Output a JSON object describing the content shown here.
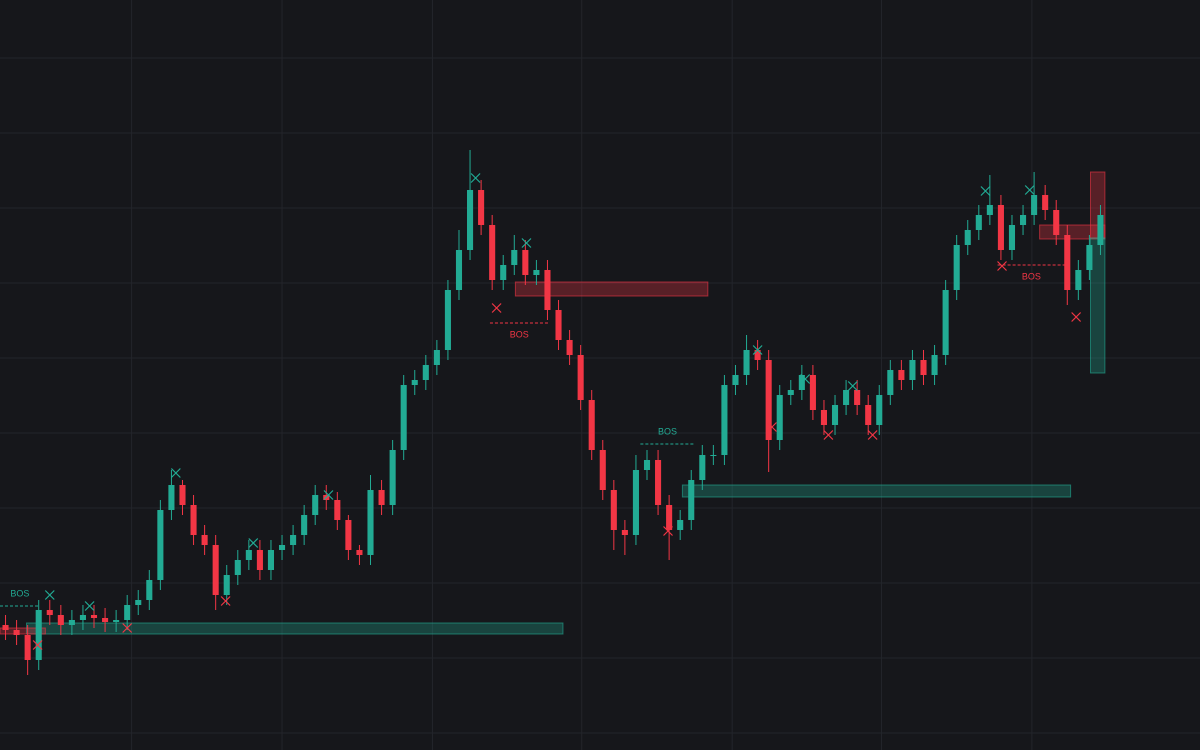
{
  "chart_data": {
    "type": "candlestick",
    "xlim": [
      -0.5,
      108
    ],
    "ylim": [
      0,
      750
    ],
    "xticks": [
      11.4,
      25,
      38.6,
      52.1,
      65.7,
      79.2,
      92.8
    ],
    "yticks": [
      17,
      92,
      167,
      242,
      317,
      392,
      467,
      542,
      617,
      692
    ],
    "grid": true,
    "background": "#16171b",
    "grid_color": "#23252b",
    "up_color": "#22ab94",
    "down_color": "#f23645",
    "open": [
      125,
      120,
      115,
      90,
      140,
      135,
      125,
      130,
      135,
      132,
      128,
      130,
      145,
      150,
      170,
      240,
      265,
      245,
      215,
      205,
      155,
      175,
      190,
      200,
      180,
      200,
      205,
      215,
      235,
      255,
      250,
      230,
      200,
      195,
      260,
      245,
      300,
      365,
      370,
      385,
      400,
      460,
      500,
      560,
      525,
      470,
      485,
      500,
      475,
      480,
      440,
      410,
      395,
      350,
      300,
      260,
      220,
      215,
      280,
      290,
      245,
      220,
      230,
      270,
      295,
      295,
      365,
      375,
      400,
      390,
      310,
      355,
      360,
      375,
      340,
      325,
      345,
      360,
      345,
      325,
      355,
      380,
      370,
      390,
      375,
      395,
      460,
      505,
      520,
      535,
      545,
      500,
      525,
      535,
      555,
      540,
      515,
      460,
      480,
      505
    ],
    "high": [
      135,
      130,
      125,
      150,
      150,
      145,
      140,
      145,
      145,
      142,
      140,
      155,
      160,
      180,
      250,
      280,
      270,
      255,
      225,
      215,
      185,
      200,
      210,
      210,
      210,
      215,
      225,
      245,
      265,
      265,
      258,
      235,
      205,
      275,
      270,
      310,
      375,
      380,
      395,
      410,
      470,
      520,
      600,
      570,
      535,
      495,
      515,
      510,
      490,
      490,
      450,
      420,
      405,
      360,
      310,
      270,
      230,
      295,
      300,
      300,
      255,
      240,
      280,
      305,
      305,
      375,
      385,
      415,
      410,
      400,
      365,
      370,
      385,
      385,
      350,
      355,
      370,
      370,
      355,
      365,
      390,
      390,
      400,
      400,
      405,
      470,
      515,
      530,
      545,
      575,
      555,
      535,
      545,
      578,
      565,
      550,
      525,
      490,
      515,
      545
    ],
    "low": [
      110,
      105,
      75,
      80,
      125,
      115,
      115,
      120,
      122,
      118,
      118,
      120,
      135,
      140,
      160,
      230,
      235,
      205,
      195,
      140,
      145,
      165,
      180,
      170,
      170,
      190,
      195,
      205,
      225,
      240,
      220,
      190,
      185,
      185,
      235,
      235,
      290,
      355,
      360,
      375,
      390,
      450,
      490,
      515,
      460,
      460,
      475,
      465,
      465,
      430,
      400,
      385,
      340,
      290,
      250,
      200,
      195,
      205,
      270,
      235,
      190,
      210,
      220,
      260,
      285,
      285,
      355,
      365,
      380,
      278,
      300,
      345,
      350,
      330,
      315,
      315,
      335,
      335,
      315,
      315,
      345,
      360,
      360,
      365,
      365,
      385,
      450,
      495,
      510,
      525,
      490,
      490,
      515,
      525,
      530,
      505,
      445,
      450,
      470,
      495
    ],
    "close": [
      120,
      115,
      90,
      140,
      135,
      125,
      130,
      135,
      132,
      128,
      130,
      145,
      150,
      170,
      240,
      265,
      245,
      215,
      205,
      155,
      175,
      190,
      200,
      180,
      200,
      205,
      215,
      235,
      255,
      250,
      230,
      200,
      195,
      260,
      245,
      300,
      365,
      370,
      385,
      400,
      460,
      500,
      560,
      525,
      470,
      485,
      500,
      475,
      480,
      440,
      410,
      395,
      350,
      300,
      260,
      220,
      215,
      280,
      290,
      245,
      220,
      230,
      270,
      295,
      295,
      365,
      375,
      400,
      390,
      310,
      355,
      360,
      375,
      340,
      325,
      345,
      360,
      345,
      325,
      355,
      380,
      370,
      390,
      375,
      395,
      460,
      505,
      520,
      535,
      545,
      500,
      525,
      535,
      555,
      540,
      515,
      460,
      480,
      505,
      535
    ],
    "zones": [
      {
        "color": "#22ab94",
        "x": [
          1.9,
          50.4
        ],
        "y": [
          116,
          127
        ]
      },
      {
        "color": "#f23645",
        "x": [
          -0.5,
          3.6
        ],
        "y": [
          116,
          122
        ]
      },
      {
        "color": "#f23645",
        "x": [
          46.1,
          63.5
        ],
        "y": [
          454,
          468
        ]
      },
      {
        "color": "#22ab94",
        "x": [
          61.2,
          96.3
        ],
        "y": [
          253,
          265
        ]
      },
      {
        "color": "#f23645",
        "x": [
          93.5,
          99.4
        ],
        "y": [
          511,
          525
        ]
      },
      {
        "color": "#f23645",
        "x": [
          98.1,
          99.4
        ],
        "y": [
          512,
          578
        ]
      },
      {
        "color": "#22ab94",
        "x": [
          98.1,
          99.4
        ],
        "y": [
          377,
          512
        ]
      }
    ],
    "bos": [
      {
        "label": "BOS",
        "color": "#22ab94",
        "y": 144,
        "x": [
          -0.5,
          3.1
        ],
        "label_position": "above"
      },
      {
        "label": "BOS",
        "color": "#f23645",
        "y": 427,
        "x": [
          43.8,
          49.1
        ],
        "label_position": "below"
      },
      {
        "label": "BOS",
        "color": "#22ab94",
        "y": 306,
        "x": [
          57.4,
          62.3
        ],
        "label_position": "above"
      },
      {
        "label": "BOS",
        "color": "#f23645",
        "y": 485,
        "x": [
          89.7,
          95.8
        ],
        "label_position": "below"
      }
    ],
    "swing_highs": {
      "color": "#22ab94",
      "x": [
        4.0,
        7.6,
        15.4,
        22.4,
        29.2,
        42.5,
        47.1,
        68.0,
        72.3,
        76.6,
        88.6,
        92.6
      ],
      "y": [
        155,
        144,
        277,
        207,
        255,
        572,
        507,
        400,
        371,
        364,
        559,
        560
      ]
    },
    "swing_lows": {
      "color": "#f23645",
      "x": [
        2.9,
        11.0,
        19.9,
        44.4,
        59.9,
        69.3,
        74.4,
        78.4,
        90.1,
        96.8
      ],
      "y": [
        105,
        122,
        149,
        442,
        219,
        323,
        315,
        315,
        484,
        433
      ]
    }
  }
}
